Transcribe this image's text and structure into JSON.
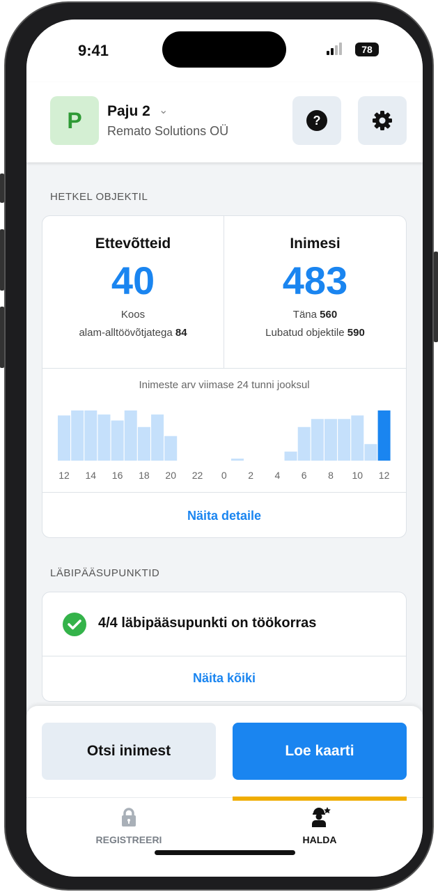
{
  "status_bar": {
    "time": "9:41",
    "battery": "78"
  },
  "header": {
    "avatar_letter": "P",
    "site_name": "Paju 2",
    "company": "Remato Solutions OÜ",
    "avatar_color": "#d4efd3"
  },
  "section_on_site": {
    "title": "HETKEL OBJEKTIL",
    "companies": {
      "label": "Ettevõtteid",
      "value": "40",
      "line1": "Koos",
      "line2_text": "alam-alltöövõtjatega",
      "line2_value": "84"
    },
    "people": {
      "label": "Inimesi",
      "value": "483",
      "today_text": "Täna",
      "today_value": "560",
      "allowed_text": "Lubatud objektile",
      "allowed_value": "590"
    },
    "details_link": "Näita detaile"
  },
  "chart_data": {
    "type": "bar",
    "title": "Inimeste arv viimase 24 tunni jooksul",
    "categories": [
      "12",
      "13",
      "14",
      "15",
      "16",
      "17",
      "18",
      "19",
      "20",
      "21",
      "22",
      "23",
      "0",
      "1",
      "2",
      "3",
      "4",
      "5",
      "6",
      "7",
      "8",
      "9",
      "10",
      "11",
      "12"
    ],
    "tick_labels": [
      "12",
      "14",
      "16",
      "18",
      "20",
      "22",
      "0",
      "2",
      "4",
      "6",
      "8",
      "10",
      "12"
    ],
    "values": [
      90,
      100,
      100,
      92,
      80,
      100,
      67,
      92,
      49,
      0,
      0,
      0,
      0,
      4,
      0,
      0,
      0,
      18,
      67,
      83,
      83,
      83,
      90,
      33,
      100
    ],
    "highlight_index": 24,
    "bar_color": "#c5e0fb",
    "highlight_color": "#1a85f0",
    "grid": false
  },
  "section_access": {
    "title": "LÄBIPÄÄSUPUNKTID",
    "status": "4/4 läbipääsupunkti on töökorras",
    "show_all": "Näita kõiki"
  },
  "actions": {
    "search_person": "Otsi inimest",
    "read_card": "Loe kaarti"
  },
  "nav": {
    "items": [
      {
        "label": "REGISTREERI",
        "icon": "lock-icon"
      },
      {
        "label": "HALDA",
        "icon": "worker-star-icon",
        "active": true
      }
    ],
    "active_color": "#f0ad00"
  }
}
